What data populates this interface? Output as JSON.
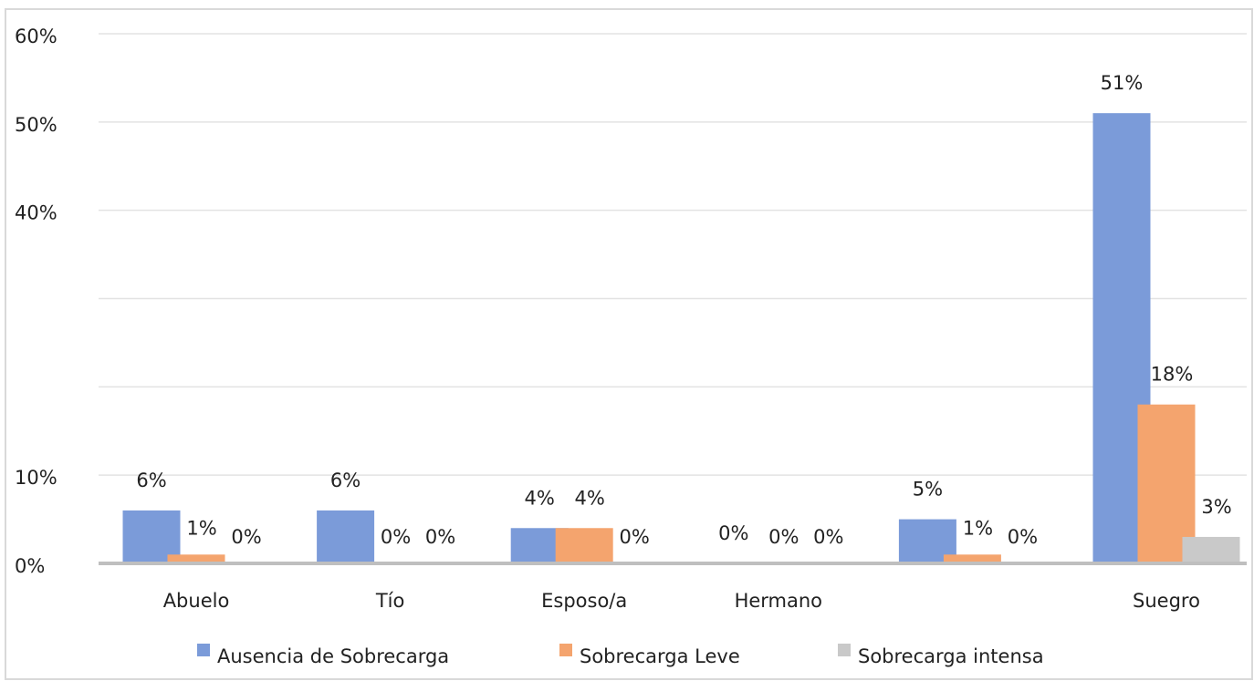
{
  "chart_data": {
    "type": "bar",
    "categories": [
      "Abuelo",
      "Tío",
      "Esposo/a",
      "Hermano",
      null,
      "Suegro"
    ],
    "series": [
      {
        "name": "Ausencia de Sobrecarga",
        "color": "#7b9bd9",
        "values": [
          6,
          6,
          4,
          0,
          5,
          51
        ],
        "value_labels": [
          "6%",
          "6%",
          "4%",
          "0%",
          "5%",
          "51%"
        ]
      },
      {
        "name": "Sobrecarga Leve",
        "color": "#f4a46e",
        "values": [
          1,
          0,
          4,
          0,
          1,
          18
        ],
        "value_labels": [
          "1%",
          "0%",
          "4%",
          "0%",
          "1%",
          "18%"
        ]
      },
      {
        "name": "Sobrecarga intensa",
        "color": "#c9c9c9",
        "values": [
          0,
          0,
          0,
          0,
          0,
          3
        ],
        "value_labels": [
          "0%",
          "0%",
          "0%",
          "0%",
          "0%",
          "3%"
        ]
      }
    ],
    "ylim": [
      0,
      60
    ],
    "yticks": [
      {
        "value": 0,
        "label": "0%"
      },
      {
        "value": 10,
        "label": "10%"
      },
      {
        "value": 40,
        "label": "40%"
      },
      {
        "value": 50,
        "label": "50%"
      },
      {
        "value": 60,
        "label": "60%"
      }
    ],
    "ygrid": [
      10,
      20,
      30,
      40,
      50,
      60
    ],
    "legend": "bottom"
  }
}
